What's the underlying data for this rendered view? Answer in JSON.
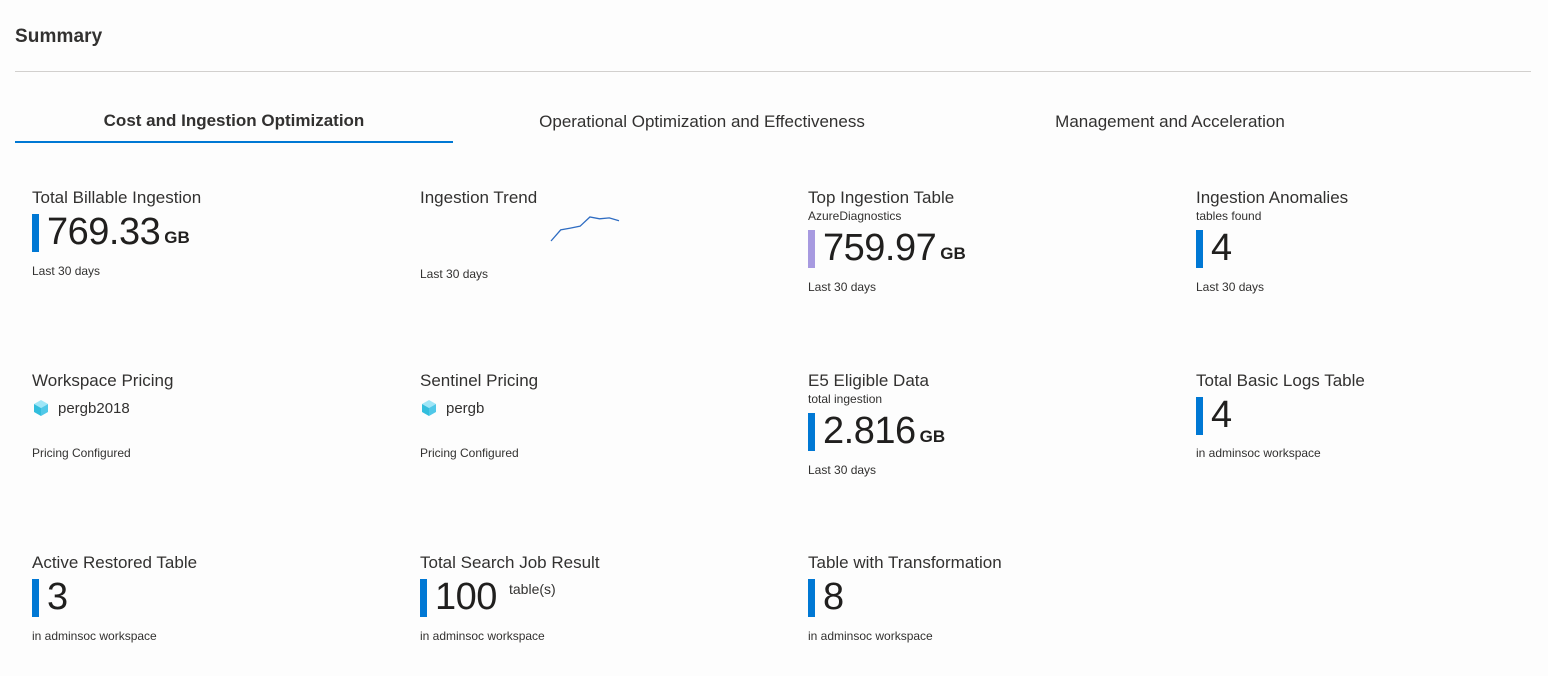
{
  "header": {
    "title": "Summary"
  },
  "tabs": [
    {
      "label": "Cost and Ingestion Optimization",
      "active": true
    },
    {
      "label": "Operational Optimization and Effectiveness",
      "active": false
    },
    {
      "label": "Management and Acceleration",
      "active": false
    }
  ],
  "colors": {
    "accent": "#0078d4",
    "bar_purple": "#a79ae0"
  },
  "tiles": {
    "total_billable": {
      "title": "Total Billable Ingestion",
      "value": "769.33",
      "unit": "GB",
      "footer": "Last 30 days"
    },
    "ingestion_trend": {
      "title": "Ingestion Trend",
      "footer": "Last 30 days",
      "sparkline": [
        0,
        6,
        7,
        8,
        13,
        12,
        12.5,
        11
      ]
    },
    "top_table": {
      "title": "Top Ingestion Table",
      "subtitle": "AzureDiagnostics",
      "value": "759.97",
      "unit": "GB",
      "footer": "Last 30 days"
    },
    "anomalies": {
      "title": "Ingestion Anomalies",
      "subtitle": "tables found",
      "value": "4",
      "footer": "Last 30 days"
    },
    "workspace_pricing": {
      "title": "Workspace Pricing",
      "value": "pergb2018",
      "icon": "cube-icon",
      "footer": "Pricing Configured"
    },
    "sentinel_pricing": {
      "title": "Sentinel Pricing",
      "value": "pergb",
      "icon": "cube-icon",
      "footer": "Pricing Configured"
    },
    "e5_eligible": {
      "title": "E5 Eligible Data",
      "subtitle": "total ingestion",
      "value": "2.816",
      "unit": "GB",
      "footer": "Last 30 days"
    },
    "basic_logs": {
      "title": "Total Basic Logs Table",
      "value": "4",
      "footer": "in adminsoc workspace"
    },
    "restored_table": {
      "title": "Active Restored Table",
      "value": "3",
      "footer": "in adminsoc workspace"
    },
    "search_job": {
      "title": "Total Search Job Result",
      "value": "100",
      "suffix": "table(s)",
      "footer": "in adminsoc workspace"
    },
    "transformation": {
      "title": "Table with Transformation",
      "value": "8",
      "footer": "in adminsoc workspace"
    }
  }
}
